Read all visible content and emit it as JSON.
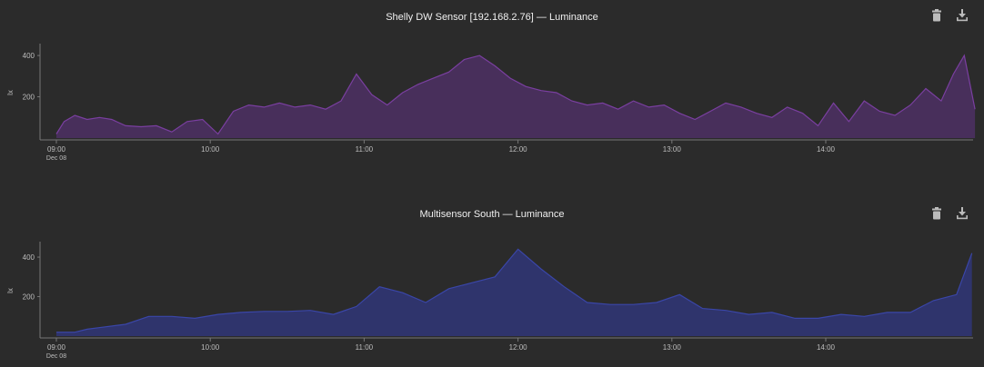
{
  "toolbar": {
    "delete_icon": "trash-icon",
    "download_icon": "download-icon"
  },
  "chart_data": [
    {
      "type": "area",
      "title": "Shelly DW Sensor [192.168.2.76] — Luminance",
      "ylabel": "lx",
      "yticks": [
        "200",
        "400"
      ],
      "ylim": [
        0,
        440
      ],
      "xticks": [
        "09:00",
        "10:00",
        "11:00",
        "12:00",
        "13:00",
        "14:00"
      ],
      "xdate": "Dec 08",
      "color": "#7a3fa0",
      "fill": "#4a2f5e",
      "series": [
        {
          "x": [
            0,
            0.05,
            0.12,
            0.2,
            0.28,
            0.36,
            0.45,
            0.55,
            0.65,
            0.75,
            0.85,
            0.95,
            1.05,
            1.15,
            1.25,
            1.35,
            1.45,
            1.55,
            1.65,
            1.75,
            1.85,
            1.95,
            2.05,
            2.15,
            2.25,
            2.35,
            2.45,
            2.55,
            2.65,
            2.75,
            2.85,
            2.95,
            3.05,
            3.15,
            3.25,
            3.35,
            3.45,
            3.55,
            3.65,
            3.75,
            3.85,
            3.95,
            4.05,
            4.15,
            4.25,
            4.35,
            4.45,
            4.55,
            4.65,
            4.75,
            4.85,
            4.95,
            5.05,
            5.15,
            5.25,
            5.35,
            5.45,
            5.55,
            5.65,
            5.75,
            5.83,
            5.9,
            5.97
          ],
          "values": [
            20,
            80,
            110,
            90,
            100,
            90,
            60,
            55,
            60,
            30,
            80,
            90,
            20,
            130,
            160,
            150,
            170,
            150,
            160,
            140,
            180,
            310,
            210,
            160,
            220,
            260,
            290,
            320,
            380,
            400,
            350,
            290,
            250,
            230,
            220,
            180,
            160,
            170,
            140,
            180,
            150,
            160,
            120,
            90,
            130,
            170,
            150,
            120,
            100,
            150,
            120,
            60,
            170,
            80,
            180,
            130,
            110,
            160,
            240,
            180,
            310,
            400,
            140
          ]
        }
      ]
    },
    {
      "type": "area",
      "title": "Multisensor South — Luminance",
      "ylabel": "lx",
      "yticks": [
        "200",
        "400"
      ],
      "ylim": [
        0,
        460
      ],
      "xticks": [
        "09:00",
        "10:00",
        "11:00",
        "12:00",
        "13:00",
        "14:00"
      ],
      "xdate": "Dec 08",
      "color": "#3a46a8",
      "fill": "#2f3570",
      "series": [
        {
          "x": [
            0,
            0.12,
            0.2,
            0.3,
            0.45,
            0.6,
            0.75,
            0.9,
            1.05,
            1.2,
            1.35,
            1.5,
            1.65,
            1.8,
            1.95,
            2.1,
            2.25,
            2.4,
            2.55,
            2.7,
            2.85,
            3.0,
            3.15,
            3.3,
            3.45,
            3.6,
            3.75,
            3.9,
            4.05,
            4.2,
            4.35,
            4.5,
            4.65,
            4.8,
            4.95,
            5.1,
            5.25,
            5.4,
            5.55,
            5.7,
            5.85,
            5.95
          ],
          "values": [
            20,
            20,
            35,
            45,
            60,
            100,
            100,
            90,
            110,
            120,
            125,
            125,
            130,
            110,
            150,
            250,
            220,
            170,
            240,
            270,
            300,
            440,
            340,
            250,
            170,
            160,
            160,
            170,
            210,
            140,
            130,
            110,
            120,
            90,
            90,
            110,
            100,
            120,
            120,
            180,
            210,
            420
          ]
        }
      ]
    }
  ]
}
